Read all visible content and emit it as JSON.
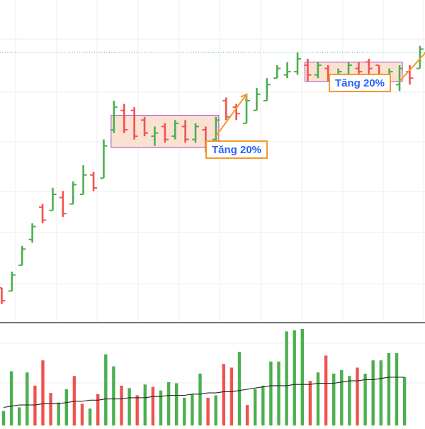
{
  "colors": {
    "up": "#4caf50",
    "down": "#ef5350",
    "grid": "#eeeeee",
    "divider": "#222222",
    "ref_line": "#26a69a",
    "avg_line": "#222222",
    "zone_fill": "#fbe1d2",
    "zone_stroke": "#a24fc9",
    "arrow": "#f39a2b",
    "label_text": "#2962ff",
    "label_border": "#f39a2b"
  },
  "chart_data": {
    "type": "ohlc",
    "price_panel": {
      "grid": true,
      "reference_line": {
        "style": "dotted",
        "value": 84
      },
      "ylim": [
        0,
        100
      ],
      "bars": [
        {
          "x": 1,
          "high": 11,
          "low": 6,
          "open": 11,
          "close": 7,
          "dir": "down"
        },
        {
          "x": 2,
          "high": 16,
          "low": 10,
          "open": 10,
          "close": 15,
          "dir": "up"
        },
        {
          "x": 3,
          "high": 24,
          "low": 18,
          "open": 18,
          "close": 23,
          "dir": "up"
        },
        {
          "x": 4,
          "high": 31,
          "low": 25,
          "open": 26,
          "close": 30,
          "dir": "up"
        },
        {
          "x": 5,
          "high": 37,
          "low": 31,
          "open": 36,
          "close": 32,
          "dir": "down"
        },
        {
          "x": 6,
          "high": 42,
          "low": 35,
          "open": 35,
          "close": 40,
          "dir": "up"
        },
        {
          "x": 7,
          "high": 41,
          "low": 33,
          "open": 39,
          "close": 34,
          "dir": "down"
        },
        {
          "x": 8,
          "high": 44,
          "low": 37,
          "open": 37,
          "close": 43,
          "dir": "up"
        },
        {
          "x": 9,
          "high": 49,
          "low": 40,
          "open": 40,
          "close": 46,
          "dir": "up"
        },
        {
          "x": 10,
          "high": 47,
          "low": 41,
          "open": 46,
          "close": 42,
          "dir": "down"
        },
        {
          "x": 11,
          "high": 57,
          "low": 45,
          "open": 45,
          "close": 55,
          "dir": "up"
        },
        {
          "x": 12,
          "high": 69,
          "low": 59,
          "open": 60,
          "close": 67,
          "dir": "up"
        },
        {
          "x": 13,
          "high": 68,
          "low": 59,
          "open": 66,
          "close": 60,
          "dir": "down"
        },
        {
          "x": 14,
          "high": 67,
          "low": 57,
          "open": 66,
          "close": 58,
          "dir": "down"
        },
        {
          "x": 15,
          "high": 64,
          "low": 58,
          "open": 63,
          "close": 59,
          "dir": "down"
        },
        {
          "x": 16,
          "high": 61,
          "low": 55,
          "open": 58,
          "close": 59,
          "dir": "up"
        },
        {
          "x": 17,
          "high": 62,
          "low": 56,
          "open": 61,
          "close": 57,
          "dir": "down"
        },
        {
          "x": 18,
          "high": 63,
          "low": 57,
          "open": 58,
          "close": 62,
          "dir": "up"
        },
        {
          "x": 19,
          "high": 63,
          "low": 56,
          "open": 61,
          "close": 57,
          "dir": "down"
        },
        {
          "x": 20,
          "high": 62,
          "low": 56,
          "open": 57,
          "close": 61,
          "dir": "up"
        },
        {
          "x": 21,
          "high": 61,
          "low": 53,
          "open": 60,
          "close": 55,
          "dir": "down"
        },
        {
          "x": 22,
          "high": 64,
          "low": 56,
          "open": 57,
          "close": 63,
          "dir": "up"
        },
        {
          "x": 23,
          "high": 70,
          "low": 63,
          "open": 69,
          "close": 64,
          "dir": "down"
        },
        {
          "x": 24,
          "high": 68,
          "low": 63,
          "open": 67,
          "close": 65,
          "dir": "down"
        },
        {
          "x": 25,
          "high": 71,
          "low": 62,
          "open": 62,
          "close": 69,
          "dir": "up"
        },
        {
          "x": 26,
          "high": 73,
          "low": 66,
          "open": 66,
          "close": 71,
          "dir": "up"
        },
        {
          "x": 27,
          "high": 76,
          "low": 69,
          "open": 69,
          "close": 74,
          "dir": "up"
        },
        {
          "x": 28,
          "high": 80,
          "low": 76,
          "open": 76,
          "close": 79,
          "dir": "up"
        },
        {
          "x": 29,
          "high": 81,
          "low": 76,
          "open": 77,
          "close": 78,
          "dir": "up"
        },
        {
          "x": 30,
          "high": 84,
          "low": 77,
          "open": 78,
          "close": 82,
          "dir": "up"
        },
        {
          "x": 31,
          "high": 82,
          "low": 75,
          "open": 80,
          "close": 77,
          "dir": "down"
        },
        {
          "x": 32,
          "high": 81,
          "low": 76,
          "open": 77,
          "close": 80,
          "dir": "up"
        },
        {
          "x": 33,
          "high": 80,
          "low": 75,
          "open": 79,
          "close": 76,
          "dir": "down"
        },
        {
          "x": 34,
          "high": 79,
          "low": 75,
          "open": 76,
          "close": 78,
          "dir": "up"
        },
        {
          "x": 35,
          "high": 81,
          "low": 76,
          "open": 77,
          "close": 80,
          "dir": "up"
        },
        {
          "x": 36,
          "high": 81,
          "low": 76,
          "open": 79,
          "close": 78,
          "dir": "down"
        },
        {
          "x": 37,
          "high": 82,
          "low": 77,
          "open": 81,
          "close": 79,
          "dir": "down"
        },
        {
          "x": 38,
          "high": 80,
          "low": 74,
          "open": 80,
          "close": 75,
          "dir": "down"
        },
        {
          "x": 39,
          "high": 79,
          "low": 75,
          "open": 75,
          "close": 78,
          "dir": "up"
        },
        {
          "x": 40,
          "high": 80,
          "low": 72,
          "open": 74,
          "close": 79,
          "dir": "up"
        },
        {
          "x": 41,
          "high": 80,
          "low": 74,
          "open": 78,
          "close": 76,
          "dir": "down"
        },
        {
          "x": 42,
          "high": 86,
          "low": 79,
          "open": 79,
          "close": 85,
          "dir": "up"
        },
        {
          "x": 43,
          "high": 91,
          "low": 84,
          "open": 85,
          "close": 90,
          "dir": "up"
        },
        {
          "x": 44,
          "high": 93,
          "low": 86,
          "open": 91,
          "close": 88,
          "dir": "down"
        },
        {
          "x": 45,
          "high": 94,
          "low": 88,
          "open": 92,
          "close": 90,
          "dir": "down"
        },
        {
          "x": 46,
          "high": 90,
          "low": 87,
          "open": 87,
          "close": 89,
          "dir": "up"
        }
      ],
      "zones": [
        {
          "x_start": 12,
          "x_end": 22,
          "y_low": 54.5,
          "y_high": 64.5
        },
        {
          "x_start": 31,
          "x_end": 40,
          "y_low": 75,
          "y_high": 81
        }
      ],
      "annotations": [
        {
          "text": "Tăng 20%",
          "arrow_from": [
            22,
            58
          ],
          "arrow_to": [
            25,
            71
          ]
        },
        {
          "text": "Tăng 20%",
          "arrow_from": [
            40,
            75
          ],
          "arrow_to": [
            44,
            89
          ]
        }
      ]
    },
    "volume_panel": {
      "ylim": [
        0,
        100
      ],
      "values": [
        12,
        45,
        15,
        44,
        33,
        54,
        27,
        19,
        30,
        41,
        18,
        14,
        26,
        59,
        49,
        33,
        31,
        25,
        34,
        32,
        29,
        36,
        35,
        23,
        26,
        43,
        23,
        25,
        51,
        48,
        61,
        17,
        30,
        33,
        53,
        53,
        78,
        79,
        80,
        37,
        44,
        58,
        43,
        46,
        41,
        48,
        43,
        54,
        54,
        60,
        60,
        40
      ],
      "dirs": [
        "up",
        "up",
        "up",
        "up",
        "down",
        "down",
        "down",
        "up",
        "up",
        "down",
        "down",
        "up",
        "down",
        "up",
        "up",
        "down",
        "up",
        "down",
        "up",
        "down",
        "up",
        "up",
        "up",
        "up",
        "up",
        "up",
        "down",
        "up",
        "down",
        "down",
        "up",
        "down",
        "up",
        "up",
        "up",
        "up",
        "up",
        "up",
        "up",
        "down",
        "up",
        "down",
        "up",
        "up",
        "up",
        "down",
        "up",
        "up",
        "up",
        "up",
        "up",
        "up"
      ],
      "average_line": [
        15,
        16,
        17,
        17,
        17,
        18,
        18,
        18,
        19,
        20,
        20,
        21,
        21,
        22,
        22,
        22,
        23,
        23,
        23,
        24,
        24,
        25,
        25,
        25,
        26,
        26,
        27,
        27,
        28,
        28,
        29,
        30,
        31,
        32,
        33,
        33,
        33,
        34,
        34,
        34,
        35,
        35,
        35,
        36,
        37,
        37,
        38,
        38,
        39,
        40,
        40,
        40
      ]
    }
  }
}
